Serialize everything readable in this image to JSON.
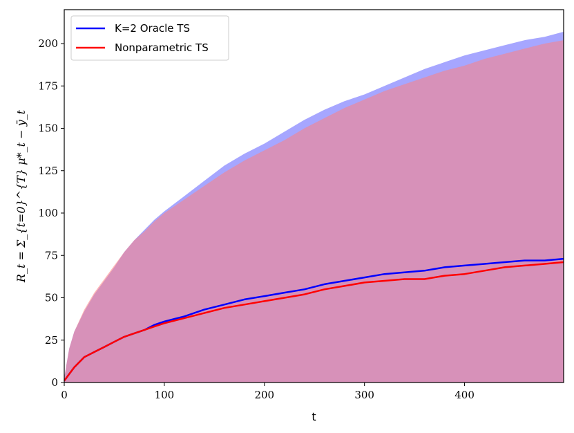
{
  "chart_data": {
    "type": "line",
    "xlabel": "t",
    "ylabel": "R_t = Σ_{t=0}^{T} μ*_t − ȳ_t",
    "xlim": [
      0,
      499
    ],
    "ylim": [
      0,
      220
    ],
    "xticks": [
      0,
      100,
      200,
      300,
      400
    ],
    "yticks": [
      0,
      25,
      50,
      75,
      100,
      125,
      150,
      175,
      200
    ],
    "legend_position": "top-left",
    "series": [
      {
        "name": "K=2 Oracle TS",
        "color": "#0000ff",
        "band_color": "#8080ff",
        "x": [
          0,
          5,
          10,
          20,
          30,
          40,
          50,
          60,
          70,
          80,
          90,
          100,
          120,
          140,
          160,
          180,
          200,
          220,
          240,
          260,
          280,
          300,
          320,
          340,
          360,
          380,
          400,
          420,
          440,
          460,
          480,
          499
        ],
        "y": [
          1,
          5,
          9,
          15,
          18,
          21,
          24,
          27,
          29,
          31,
          34,
          36,
          39,
          43,
          46,
          49,
          51,
          53,
          55,
          58,
          60,
          62,
          64,
          65,
          66,
          68,
          69,
          70,
          71,
          72,
          72,
          73
        ],
        "upper": [
          3,
          20,
          30,
          42,
          52,
          60,
          68,
          77,
          84,
          90,
          96,
          101,
          110,
          119,
          128,
          135,
          141,
          148,
          155,
          161,
          166,
          170,
          175,
          180,
          185,
          189,
          193,
          196,
          199,
          202,
          204,
          207
        ]
      },
      {
        "name": "Nonparametric TS",
        "color": "#ff0000",
        "band_color": "#ff8080",
        "x": [
          0,
          5,
          10,
          20,
          30,
          40,
          50,
          60,
          70,
          80,
          90,
          100,
          120,
          140,
          160,
          180,
          200,
          220,
          240,
          260,
          280,
          300,
          320,
          340,
          360,
          380,
          400,
          420,
          440,
          460,
          480,
          499
        ],
        "y": [
          1,
          5,
          9,
          15,
          18,
          21,
          24,
          27,
          29,
          31,
          33,
          35,
          38,
          41,
          44,
          46,
          48,
          50,
          52,
          55,
          57,
          59,
          60,
          61,
          61,
          63,
          64,
          66,
          68,
          69,
          70,
          71
        ],
        "upper": [
          3,
          20,
          30,
          43,
          53,
          61,
          69,
          77,
          84,
          89,
          95,
          100,
          108,
          116,
          124,
          131,
          137,
          143,
          150,
          156,
          162,
          167,
          172,
          176,
          180,
          184,
          187,
          191,
          194,
          197,
          200,
          202
        ]
      }
    ]
  }
}
